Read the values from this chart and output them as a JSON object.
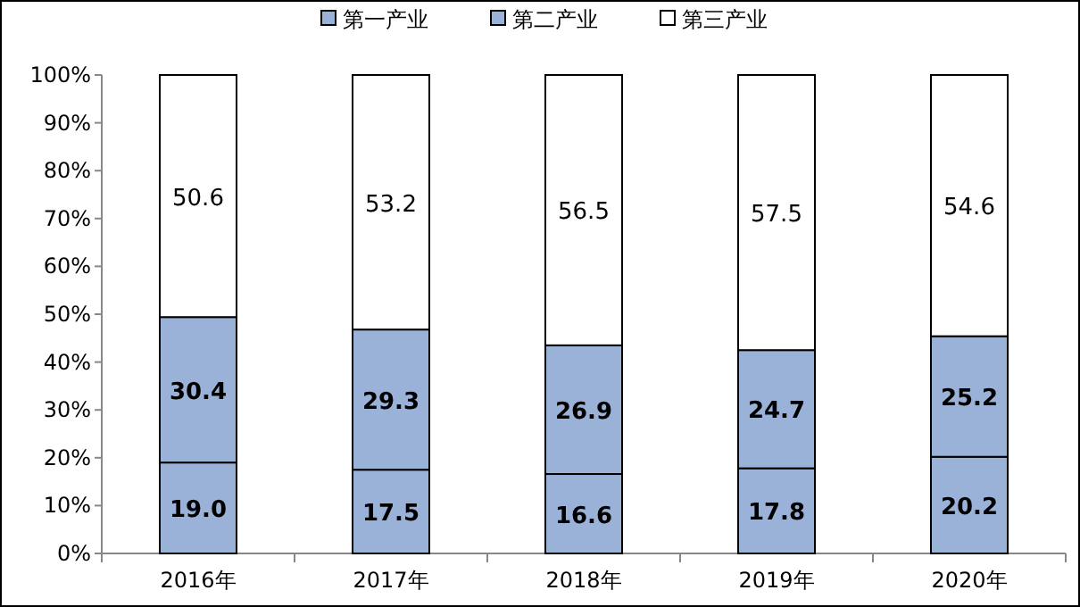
{
  "chart_data": {
    "type": "bar",
    "stacked": true,
    "categories": [
      "2016年",
      "2017年",
      "2018年",
      "2019年",
      "2020年"
    ],
    "series": [
      {
        "name": "第一产业",
        "color": "#9bb2d8",
        "values": [
          19.0,
          17.5,
          16.6,
          17.8,
          20.2
        ],
        "value_labels": [
          "19.0",
          "17.5",
          "16.6",
          "17.8",
          "20.2"
        ]
      },
      {
        "name": "第二产业",
        "color": "#9bb2d8",
        "values": [
          30.4,
          29.3,
          26.9,
          24.7,
          25.2
        ],
        "value_labels": [
          "30.4",
          "29.3",
          "26.9",
          "24.7",
          "25.2"
        ]
      },
      {
        "name": "第三产业",
        "color": "#ffffff",
        "values": [
          50.6,
          53.2,
          56.5,
          57.5,
          54.6
        ],
        "value_labels": [
          "50.6",
          "53.2",
          "56.5",
          "57.5",
          "54.6"
        ]
      }
    ],
    "ylim": [
      0,
      100
    ],
    "yticks": [
      {
        "value": 0,
        "label": "0%"
      },
      {
        "value": 10,
        "label": "10%"
      },
      {
        "value": 20,
        "label": "20%"
      },
      {
        "value": 30,
        "label": "30%"
      },
      {
        "value": 40,
        "label": "40%"
      },
      {
        "value": 50,
        "label": "50%"
      },
      {
        "value": 60,
        "label": "60%"
      },
      {
        "value": 70,
        "label": "70%"
      },
      {
        "value": 80,
        "label": "80%"
      },
      {
        "value": 90,
        "label": "90%"
      },
      {
        "value": 100,
        "label": "100%"
      }
    ],
    "legend": "top"
  }
}
